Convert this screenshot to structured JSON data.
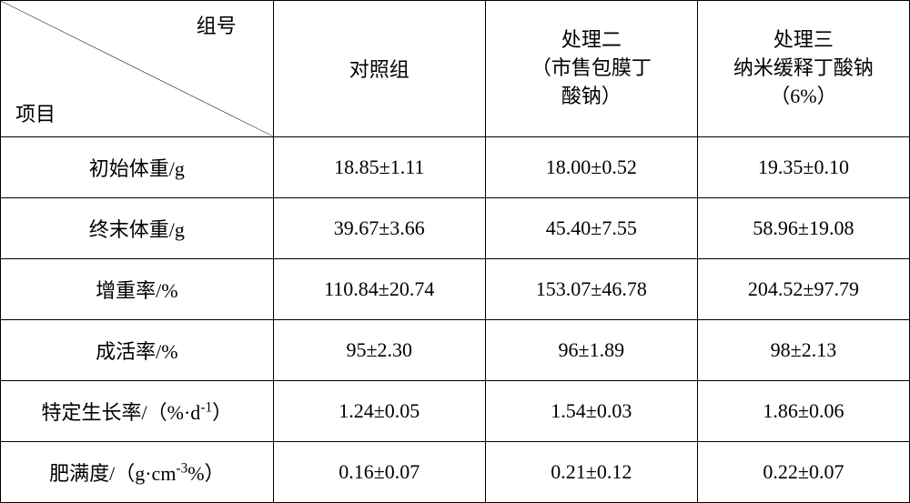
{
  "table": {
    "type": "table",
    "background_color": "#ffffff",
    "border_color": "#000000",
    "text_color": "#000000",
    "font_size": 22,
    "header": {
      "diagonal_top": "组号",
      "diagonal_bottom": "项目",
      "col1": "对照组",
      "col2_line1": "处理二",
      "col2_line2": "（市售包膜丁",
      "col2_line3": "酸钠）",
      "col3_line1": "处理三",
      "col3_line2": "纳米缓释丁酸钠",
      "col3_line3": "（6%）"
    },
    "rows": [
      {
        "label": "初始体重/g",
        "c1": "18.85±1.11",
        "c2": "18.00±0.52",
        "c3": "19.35±0.10"
      },
      {
        "label": "终末体重/g",
        "c1": "39.67±3.66",
        "c2": "45.40±7.55",
        "c3": "58.96±19.08"
      },
      {
        "label": "增重率/%",
        "c1": "110.84±20.74",
        "c2": "153.07±46.78",
        "c3": "204.52±97.79"
      },
      {
        "label": "成活率/%",
        "c1": "95±2.30",
        "c2": "96±1.89",
        "c3": "98±2.13"
      },
      {
        "label_html": "特定生长率/（%·d<sup>-1</sup>）",
        "label": "特定生长率/（%·d-1）",
        "c1": "1.24±0.05",
        "c2": "1.54±0.03",
        "c3": "1.86±0.06"
      },
      {
        "label_html": "肥满度/（g·cm<sup>-3</sup>%）",
        "label": "肥满度/（g·cm-3%）",
        "c1": "0.16±0.07",
        "c2": "0.21±0.12",
        "c3": "0.22±0.07"
      }
    ],
    "columns": [
      "项目/组号",
      "对照组",
      "处理二",
      "处理三"
    ],
    "column_widths": [
      0.3,
      0.2333,
      0.2333,
      0.2333
    ]
  }
}
